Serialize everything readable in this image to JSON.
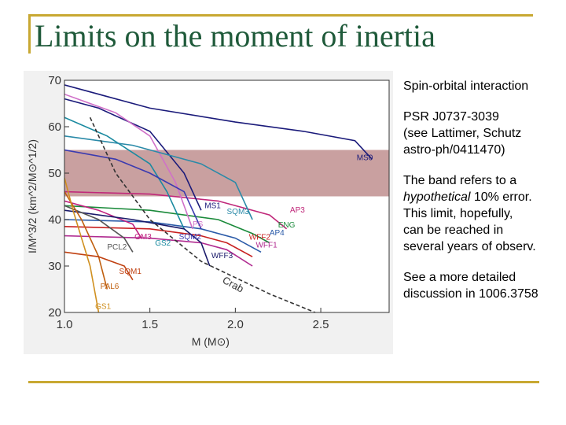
{
  "slide": {
    "title": "Limits on the moment of inertia",
    "accent_color": "#c8a832",
    "title_color": "#1f5a3a"
  },
  "bullets": [
    {
      "text": "Spin-orbital interaction"
    },
    {
      "text": "PSR J0737-3039\n(see Lattimer, Schutz\nastro-ph/0411470)"
    },
    {
      "pre": "The band refers to a\n",
      "em": "hypothetical",
      "post": " 10% error.\nThis limit, hopefully,\ncan be reached in\nseveral years of observ."
    },
    {
      "text": "See a more detailed\ndiscussion in 1006.3758"
    }
  ],
  "chart_data": {
    "type": "line",
    "xlabel": "M (M⊙)",
    "ylabel": "I/M^3/2 (km^2/M⊙^1/2)",
    "xlim": [
      1.0,
      2.9
    ],
    "ylim": [
      20,
      70
    ],
    "xticks": [
      "1.0",
      "1.5",
      "2.0",
      "2.5"
    ],
    "yticks": [
      "20",
      "30",
      "40",
      "50",
      "60",
      "70"
    ],
    "band": {
      "y0": 45,
      "y1": 55,
      "color": "#c9a0a0"
    },
    "series": [
      {
        "name": "MS0",
        "color": "#1a1a7a",
        "dash": false,
        "x": [
          1.0,
          1.5,
          2.0,
          2.4,
          2.7,
          2.8
        ],
        "y": [
          69,
          64,
          61,
          59,
          57,
          53
        ]
      },
      {
        "name": "AP3",
        "color": "#c0287a",
        "dash": false,
        "x": [
          1.0,
          1.5,
          1.9,
          2.2,
          2.3
        ],
        "y": [
          46,
          45.5,
          44,
          41,
          38
        ]
      },
      {
        "name": "ENG",
        "color": "#1a8a3a",
        "dash": false,
        "x": [
          1.0,
          1.5,
          1.9,
          2.1,
          2.2
        ],
        "y": [
          43,
          42,
          40,
          37,
          35
        ]
      },
      {
        "name": "AP4",
        "color": "#2a5aa8",
        "dash": false,
        "x": [
          1.0,
          1.5,
          1.8,
          2.0,
          2.15
        ],
        "y": [
          40,
          39.5,
          38,
          36,
          33
        ]
      },
      {
        "name": "WFF2",
        "color": "#c82020",
        "dash": false,
        "x": [
          1.0,
          1.5,
          1.8,
          1.95,
          2.1
        ],
        "y": [
          38.5,
          38,
          36.5,
          35,
          32
        ]
      },
      {
        "name": "WFF1",
        "color": "#b02a90",
        "dash": false,
        "x": [
          1.0,
          1.5,
          1.8,
          1.95,
          2.1
        ],
        "y": [
          36.5,
          36,
          35,
          33.5,
          30
        ]
      },
      {
        "name": "MS1",
        "color": "#1a1a7a",
        "dash": false,
        "x": [
          1.0,
          1.2,
          1.5,
          1.7,
          1.8
        ],
        "y": [
          66,
          64,
          59,
          50,
          42
        ]
      },
      {
        "name": "PS",
        "color": "#d070c8",
        "dash": false,
        "x": [
          1.0,
          1.3,
          1.5,
          1.65,
          1.75
        ],
        "y": [
          67,
          63,
          58,
          48,
          38
        ]
      },
      {
        "name": "GM3",
        "color": "#c02080",
        "dash": false,
        "x": [
          1.0,
          1.2,
          1.4,
          1.45
        ],
        "y": [
          44,
          42,
          39,
          36
        ]
      },
      {
        "name": "GS2",
        "color": "#1a8aa0",
        "dash": false,
        "x": [
          1.0,
          1.25,
          1.5,
          1.6,
          1.7
        ],
        "y": [
          62,
          58,
          52,
          46,
          38
        ]
      },
      {
        "name": "SQM2",
        "color": "#3a3ab0",
        "dash": false,
        "x": [
          1.0,
          1.3,
          1.5,
          1.7,
          1.8
        ],
        "y": [
          55,
          53,
          50,
          46,
          38
        ]
      },
      {
        "name": "SQM3",
        "color": "#2a8aa8",
        "dash": false,
        "x": [
          1.0,
          1.4,
          1.8,
          2.0,
          2.1
        ],
        "y": [
          58,
          56,
          52,
          48,
          40
        ]
      },
      {
        "name": "WFF3",
        "color": "#1a1a6a",
        "dash": false,
        "x": [
          1.0,
          1.4,
          1.7,
          1.8,
          1.85
        ],
        "y": [
          42,
          40,
          38,
          35,
          30
        ]
      },
      {
        "name": "PCL2",
        "color": "#555555",
        "dash": false,
        "x": [
          1.0,
          1.2,
          1.35,
          1.4
        ],
        "y": [
          43,
          40,
          36,
          33
        ]
      },
      {
        "name": "PAL6",
        "color": "#c06010",
        "dash": false,
        "x": [
          1.0,
          1.1,
          1.2,
          1.25
        ],
        "y": [
          46,
          40,
          32,
          25
        ]
      },
      {
        "name": "SQM1",
        "color": "#c04010",
        "dash": false,
        "x": [
          1.0,
          1.2,
          1.35,
          1.4
        ],
        "y": [
          33,
          32,
          30,
          27
        ]
      },
      {
        "name": "GS1",
        "color": "#d09020",
        "dash": false,
        "x": [
          1.0,
          1.05,
          1.15,
          1.2
        ],
        "y": [
          49,
          42,
          30,
          20
        ]
      },
      {
        "name": "Crab",
        "color": "#333333",
        "dash": true,
        "x": [
          1.15,
          1.3,
          1.5,
          1.8,
          2.2,
          2.6
        ],
        "y": [
          62,
          50,
          40,
          31,
          24,
          18
        ]
      }
    ],
    "series_labels": [
      {
        "text": "MS0",
        "x": 2.71,
        "y": 52.8,
        "color": "#1a1a7a"
      },
      {
        "text": "AP3",
        "x": 2.32,
        "y": 41.5,
        "color": "#c0287a"
      },
      {
        "text": "SQM3",
        "x": 1.95,
        "y": 41.2,
        "color": "#2a8aa8"
      },
      {
        "text": "MS1",
        "x": 1.82,
        "y": 42.5,
        "color": "#1a1a7a"
      },
      {
        "text": "ENG",
        "x": 2.25,
        "y": 38.3,
        "color": "#1a8a3a"
      },
      {
        "text": "AP4",
        "x": 2.2,
        "y": 36.6,
        "color": "#2a5aa8"
      },
      {
        "text": "PS",
        "x": 1.75,
        "y": 38.5,
        "color": "#d070c8"
      },
      {
        "text": "WFF2",
        "x": 2.08,
        "y": 35.7,
        "color": "#c82020"
      },
      {
        "text": "WFF1",
        "x": 2.12,
        "y": 34.0,
        "color": "#b02a90"
      },
      {
        "text": "GM3",
        "x": 1.41,
        "y": 35.8,
        "color": "#c02080"
      },
      {
        "text": "SQM2",
        "x": 1.67,
        "y": 35.8,
        "color": "#3a3ab0"
      },
      {
        "text": "GS2",
        "x": 1.53,
        "y": 34.4,
        "color": "#1a8aa0"
      },
      {
        "text": "PCL2",
        "x": 1.25,
        "y": 33.6,
        "color": "#555555"
      },
      {
        "text": "WFF3",
        "x": 1.86,
        "y": 31.7,
        "color": "#1a1a6a"
      },
      {
        "text": "SQM1",
        "x": 1.32,
        "y": 28.3,
        "color": "#c04010"
      },
      {
        "text": "Crab",
        "x": 1.92,
        "y": 26.5,
        "color": "#333333"
      },
      {
        "text": "PAL6",
        "x": 1.21,
        "y": 25.1,
        "color": "#c06010"
      },
      {
        "text": "GS1",
        "x": 1.18,
        "y": 20.8,
        "color": "#d09020"
      }
    ]
  }
}
